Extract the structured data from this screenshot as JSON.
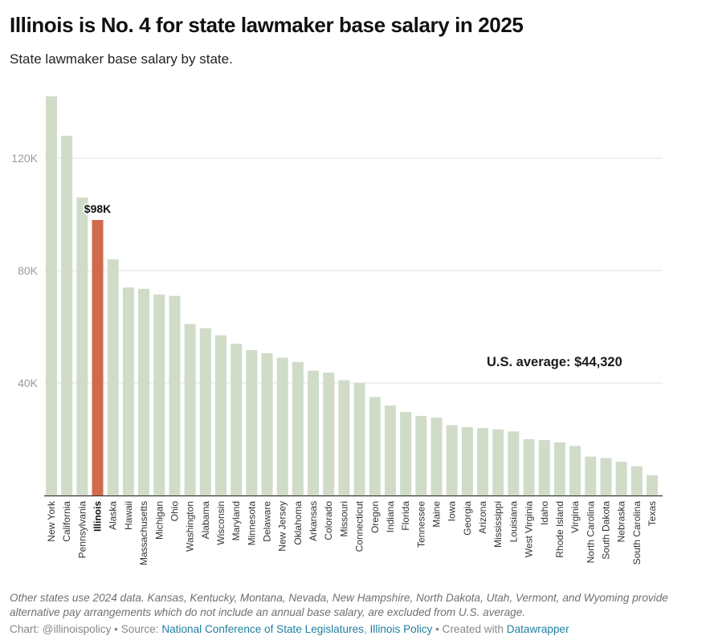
{
  "header": {
    "title": "Illinois is No. 4 for state lawmaker base salary in 2025",
    "subtitle": "State lawmaker base salary by state."
  },
  "colors": {
    "bar": "#d0dcc8",
    "highlight": "#d06a4b",
    "grid": "#e2e2e2",
    "axis": "#333333",
    "link": "#1f7f9e"
  },
  "chart_data": {
    "type": "bar",
    "title": "Illinois is No. 4 for state lawmaker base salary in 2025",
    "subtitle": "State lawmaker base salary by state.",
    "xlabel": "",
    "ylabel": "",
    "ylim": [
      0,
      145000
    ],
    "yticks": [
      40000,
      80000,
      120000
    ],
    "ytick_labels": [
      "40K",
      "80K",
      "120K"
    ],
    "grid": true,
    "highlight_category": "Illinois",
    "highlight_label": "$98K",
    "categories": [
      "New York",
      "California",
      "Pennsylvania",
      "Illinois",
      "Alaska",
      "Hawaii",
      "Massachusetts",
      "Michigan",
      "Ohio",
      "Washington",
      "Alabama",
      "Wisconsin",
      "Maryland",
      "Minnesota",
      "Delaware",
      "New Jersey",
      "Oklahoma",
      "Arkansas",
      "Colorado",
      "Missouri",
      "Connecticut",
      "Oregon",
      "Indiana",
      "Florida",
      "Tennessee",
      "Maine",
      "Iowa",
      "Georgia",
      "Arizona",
      "Mississippi",
      "Louisiana",
      "West Virginia",
      "Idaho",
      "Rhode Island",
      "Virginia",
      "North Carolina",
      "South Dakota",
      "Nebraska",
      "South Carolina",
      "Texas"
    ],
    "values": [
      142000,
      128000,
      106000,
      98000,
      84000,
      74000,
      73500,
      71500,
      71000,
      61000,
      59500,
      57000,
      54000,
      51700,
      50600,
      49000,
      47500,
      44400,
      43700,
      41000,
      40000,
      35000,
      32000,
      29700,
      28300,
      27700,
      25000,
      24300,
      24000,
      23500,
      22800,
      20000,
      19700,
      18900,
      17600,
      13800,
      13300,
      12000,
      10400,
      7200
    ],
    "annotations": [
      {
        "text": "U.S. average: $44,320",
        "value": 44320
      }
    ]
  },
  "notes": "Other states use 2024 data. Kansas, Kentucky, Montana, Nevada, New Hampshire, North Dakota, Utah, Vermont, and Wyoming provide alternative pay arrangements which do not include an annual base salary, are excluded from U.S. average.",
  "footer": {
    "chart_prefix": "Chart: @illinoispolicy",
    "sep1": " • ",
    "source_prefix": "Source: ",
    "source_link1": "National Conference of State Legislatures",
    "source_comma": ", ",
    "source_link2": "Illinois Policy",
    "sep2": " • ",
    "created_prefix": "Created with ",
    "created_link": "Datawrapper"
  }
}
